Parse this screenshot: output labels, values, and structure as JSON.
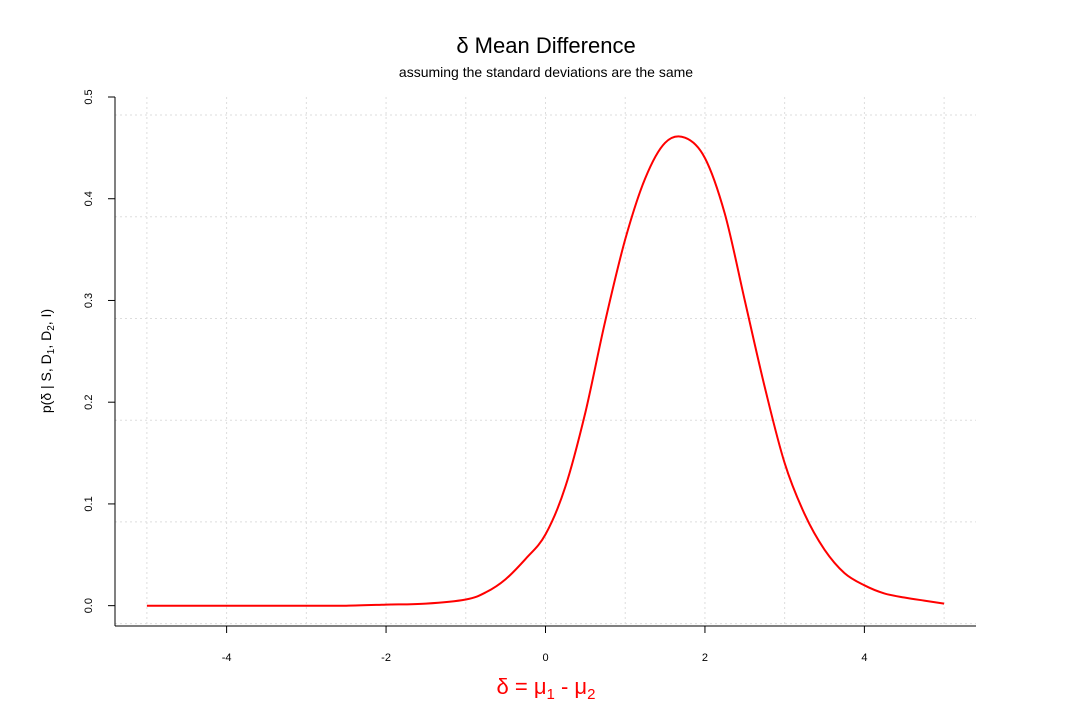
{
  "chart_data": {
    "type": "line",
    "title": "δ Mean Difference",
    "subtitle": "assuming the standard deviations are the same",
    "xlabel": {
      "base": "δ = μ",
      "sub1": "1",
      "mid": " - μ",
      "sub2": "2"
    },
    "ylabel": {
      "p1": "p(δ | S, D",
      "s1": "1",
      "p2": ", D",
      "s2": "2",
      "p3": ", I)"
    },
    "xlim": [
      -5.4,
      5.4
    ],
    "ylim": [
      -0.02,
      0.5
    ],
    "x_ticks": [
      -4,
      -2,
      0,
      2,
      4
    ],
    "x_tick_labels": [
      "-4",
      "-2",
      "0",
      "2",
      "4"
    ],
    "y_ticks": [
      0.0,
      0.1,
      0.2,
      0.3,
      0.4,
      0.5
    ],
    "y_tick_labels": [
      "0.0",
      "0.1",
      "0.2",
      "0.3",
      "0.4",
      "0.5"
    ],
    "x_grid": [
      -5,
      -3,
      -1,
      1,
      3,
      5
    ],
    "grid": true,
    "series": [
      {
        "color": "#ff0000",
        "x": [
          -5.0,
          -4.5,
          -4.0,
          -3.5,
          -3.0,
          -2.5,
          -2.0,
          -1.5,
          -1.0,
          -0.75,
          -0.5,
          -0.25,
          0.0,
          0.25,
          0.5,
          0.75,
          1.0,
          1.25,
          1.5,
          1.75,
          2.0,
          2.25,
          2.5,
          2.75,
          3.0,
          3.25,
          3.5,
          3.75,
          4.0,
          4.25,
          4.5,
          4.75,
          5.0
        ],
        "y": [
          0.0,
          0.0,
          0.0,
          0.0,
          0.0,
          0.0,
          0.001,
          0.002,
          0.006,
          0.013,
          0.026,
          0.046,
          0.07,
          0.117,
          0.19,
          0.28,
          0.36,
          0.42,
          0.455,
          0.46,
          0.44,
          0.385,
          0.3,
          0.215,
          0.14,
          0.09,
          0.055,
          0.032,
          0.02,
          0.012,
          0.008,
          0.005,
          0.002
        ]
      }
    ]
  }
}
